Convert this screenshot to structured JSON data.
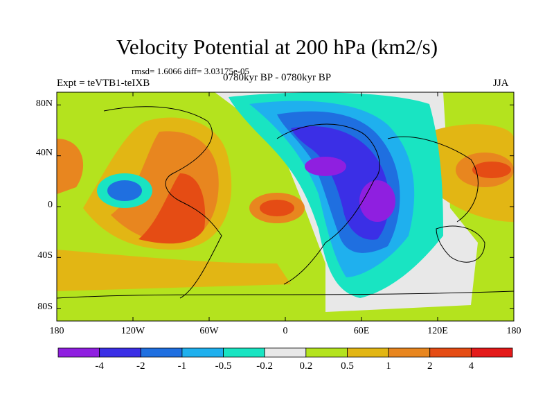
{
  "title": "Velocity Potential at 200 hPa (km2/s)",
  "stats": "rmsd= 1.6066 diff= 3.03175e-05",
  "experiment": "Expt = teVTB1-teIXB",
  "period": "0780kyr BP - 0780kyr BP",
  "season": "JJA",
  "lat_ticks": [
    "80N",
    "40N",
    "0",
    "40S",
    "80S"
  ],
  "lon_ticks": [
    "180",
    "120W",
    "60W",
    "0",
    "60E",
    "120E",
    "180"
  ],
  "colorbar": {
    "colors": [
      "#8f1fe0",
      "#3b2fe6",
      "#1f6fe0",
      "#1fb0ee",
      "#19e4c2",
      "#e8e8e8",
      "#b4e31e",
      "#e2b614",
      "#e8861f",
      "#e54c14",
      "#e41a1a"
    ],
    "labels": [
      "-4",
      "-2",
      "-1",
      "-0.5",
      "-0.2",
      "0.2",
      "0.5",
      "1",
      "2",
      "4"
    ]
  }
}
